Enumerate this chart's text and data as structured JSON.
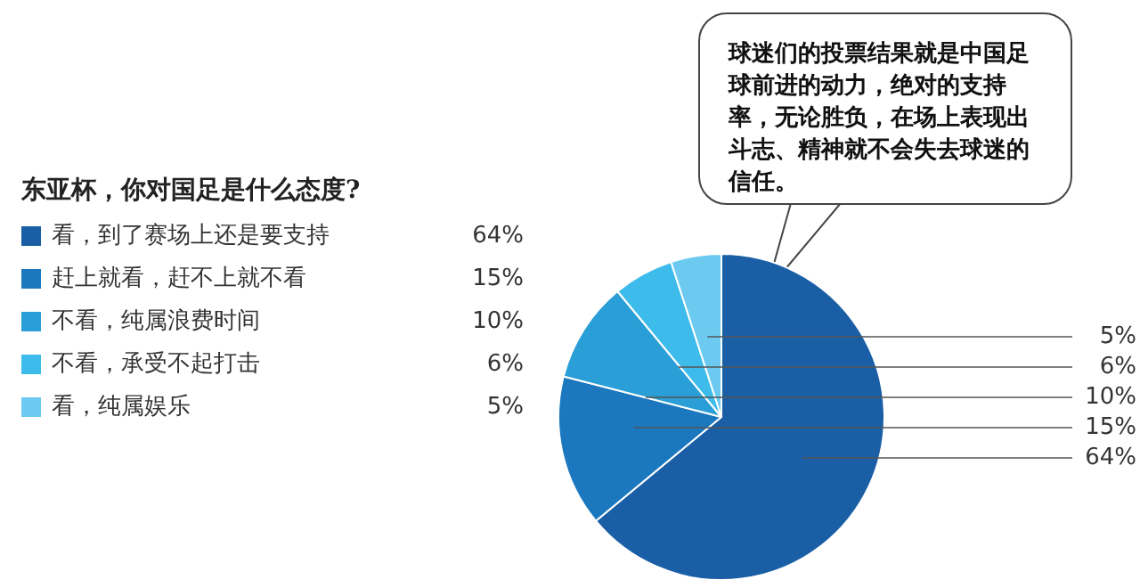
{
  "chart_data": {
    "type": "pie",
    "title": "东亚杯，你对国足是什么态度?",
    "categories": [
      "看，到了赛场上还是要支持",
      "赶上就看，赶不上就不看",
      "不看，纯属浪费时间",
      "不看，承受不起打击",
      "看，纯属娱乐"
    ],
    "values": [
      64,
      15,
      10,
      6,
      5
    ],
    "value_labels": [
      "64%",
      "15%",
      "10%",
      "6%",
      "5%"
    ],
    "colors": [
      "#1a5fa6",
      "#1b78bf",
      "#2a9ed6",
      "#3dbcec",
      "#6ccaf0"
    ],
    "legend": "left",
    "annotations": [
      "球迷们的投票结果就是中国足球前进的动力，绝对的支持率，无论胜负，在场上表现出斗志、精神就不会失去球迷的信任。"
    ]
  }
}
